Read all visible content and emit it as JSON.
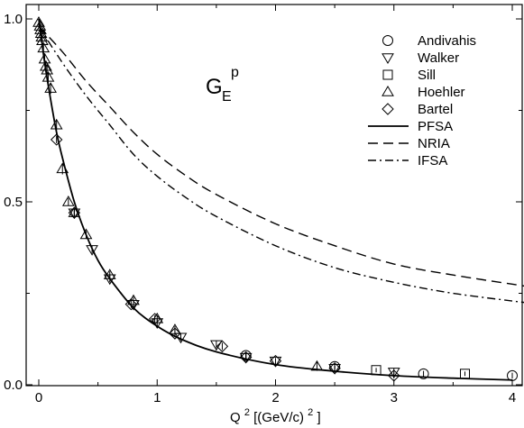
{
  "chart_data": {
    "type": "scatter",
    "title": "",
    "annotation": {
      "base": "G",
      "subscript": "E",
      "superscript": "p"
    },
    "xlabel": {
      "base": "Q",
      "superscript": "2",
      "rest": " [(GeV/c)",
      "superscript2": "2",
      "close": "]"
    },
    "ylabel": "",
    "xlim": [
      -0.1,
      4.1
    ],
    "ylim": [
      0.0,
      1.02
    ],
    "x_ticks": [
      "0",
      "1",
      "2",
      "3",
      "4"
    ],
    "y_ticks": [
      "0.0",
      "0.5",
      "1.0"
    ],
    "grid": false,
    "legend_position": "top-right",
    "series": [
      {
        "name": "Andivahis",
        "marker": "circle",
        "x": [
          1.75,
          2.5,
          3.25,
          4.0
        ],
        "y": [
          0.08,
          0.05,
          0.03,
          0.025
        ],
        "err": [
          0.008,
          0.007,
          0.008,
          0.008
        ]
      },
      {
        "name": "Walker",
        "marker": "triangle-down",
        "x": [
          0.3,
          0.45,
          0.6,
          0.8,
          1.0,
          1.2,
          1.5,
          1.75,
          2.0,
          2.5,
          3.0
        ],
        "y": [
          0.47,
          0.37,
          0.29,
          0.22,
          0.17,
          0.13,
          0.11,
          0.075,
          0.065,
          0.045,
          0.035
        ],
        "err": [
          0.01,
          0.01,
          0.01,
          0.01,
          0.01,
          0.01,
          0.01,
          0.01,
          0.008,
          0.008,
          0.01
        ]
      },
      {
        "name": "Sill",
        "marker": "square",
        "x": [
          2.85,
          3.6
        ],
        "y": [
          0.04,
          0.03
        ],
        "err": [
          0.006,
          0.006
        ]
      },
      {
        "name": "Hoehler",
        "marker": "triangle-up",
        "x": [
          0.0,
          0.01,
          0.015,
          0.02,
          0.025,
          0.03,
          0.04,
          0.05,
          0.06,
          0.07,
          0.08,
          0.1,
          0.15,
          0.2,
          0.25,
          0.3,
          0.4,
          0.6,
          0.8,
          1.0,
          1.15,
          2.35
        ],
        "y": [
          0.99,
          0.98,
          0.97,
          0.96,
          0.95,
          0.94,
          0.92,
          0.89,
          0.87,
          0.86,
          0.84,
          0.81,
          0.71,
          0.59,
          0.5,
          0.47,
          0.41,
          0.3,
          0.23,
          0.18,
          0.15,
          0.05
        ],
        "err": [
          0.01,
          0.01,
          0.01,
          0.01,
          0.01,
          0.01,
          0.01,
          0.015,
          0.015,
          0.015,
          0.015,
          0.015,
          0.015,
          0.015,
          0.01,
          0.01,
          0.01,
          0.01,
          0.01,
          0.01,
          0.01,
          0.012
        ]
      },
      {
        "name": "Bartel",
        "marker": "diamond",
        "x": [
          0.15,
          0.3,
          0.78,
          0.98,
          1.15,
          1.55,
          1.75,
          2.0,
          2.5,
          3.0
        ],
        "y": [
          0.67,
          0.47,
          0.22,
          0.18,
          0.14,
          0.105,
          0.075,
          0.065,
          0.045,
          0.025
        ],
        "err": [
          0.01,
          0.01,
          0.01,
          0.01,
          0.01,
          0.01,
          0.008,
          0.008,
          0.008,
          0.008
        ]
      },
      {
        "name": "PFSA",
        "line": "solid",
        "x": [
          0.0,
          0.05,
          0.1,
          0.15,
          0.2,
          0.3,
          0.4,
          0.5,
          0.6,
          0.8,
          1.0,
          1.2,
          1.5,
          2.0,
          2.5,
          3.0,
          3.5,
          4.0
        ],
        "y": [
          1.0,
          0.88,
          0.78,
          0.69,
          0.62,
          0.5,
          0.41,
          0.34,
          0.29,
          0.21,
          0.16,
          0.125,
          0.09,
          0.055,
          0.037,
          0.025,
          0.018,
          0.013
        ]
      },
      {
        "name": "NRIA",
        "line": "dashed",
        "x": [
          0.0,
          0.2,
          0.4,
          0.6,
          0.8,
          1.0,
          1.25,
          1.5,
          2.0,
          2.5,
          3.0,
          3.5,
          4.1
        ],
        "y": [
          0.98,
          0.91,
          0.83,
          0.76,
          0.69,
          0.63,
          0.57,
          0.52,
          0.44,
          0.38,
          0.33,
          0.3,
          0.27
        ]
      },
      {
        "name": "IFSA",
        "line": "dashdot",
        "x": [
          0.0,
          0.2,
          0.4,
          0.6,
          0.8,
          1.0,
          1.25,
          1.5,
          2.0,
          2.5,
          3.0,
          3.5,
          4.1
        ],
        "y": [
          0.98,
          0.88,
          0.79,
          0.71,
          0.63,
          0.57,
          0.51,
          0.46,
          0.38,
          0.32,
          0.28,
          0.25,
          0.225
        ]
      }
    ]
  }
}
